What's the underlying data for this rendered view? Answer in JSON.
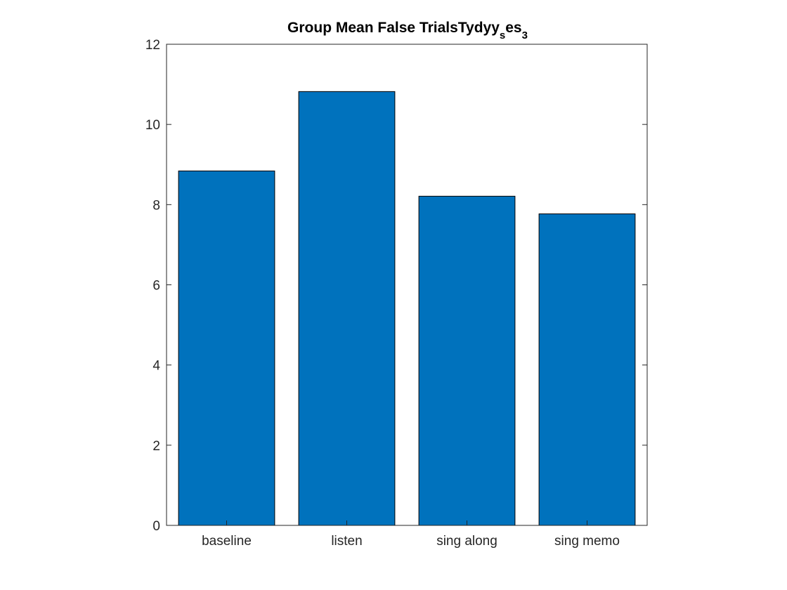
{
  "chart_data": {
    "type": "bar",
    "title": {
      "main": "Group Mean False TrialsTydyy",
      "sub1": "s",
      "mid": "es",
      "sub2": "3"
    },
    "xlabel": "",
    "ylabel": "",
    "categories": [
      "baseline",
      "listen",
      "sing along",
      "sing memo"
    ],
    "values": [
      8.84,
      10.82,
      8.21,
      7.77
    ],
    "ylim": [
      0,
      12
    ],
    "yticks": [
      "0",
      "2",
      "4",
      "6",
      "8",
      "10",
      "12"
    ],
    "grid": false,
    "legend": "none",
    "bar_color": "#0072BD",
    "edge_color": "#000000"
  }
}
